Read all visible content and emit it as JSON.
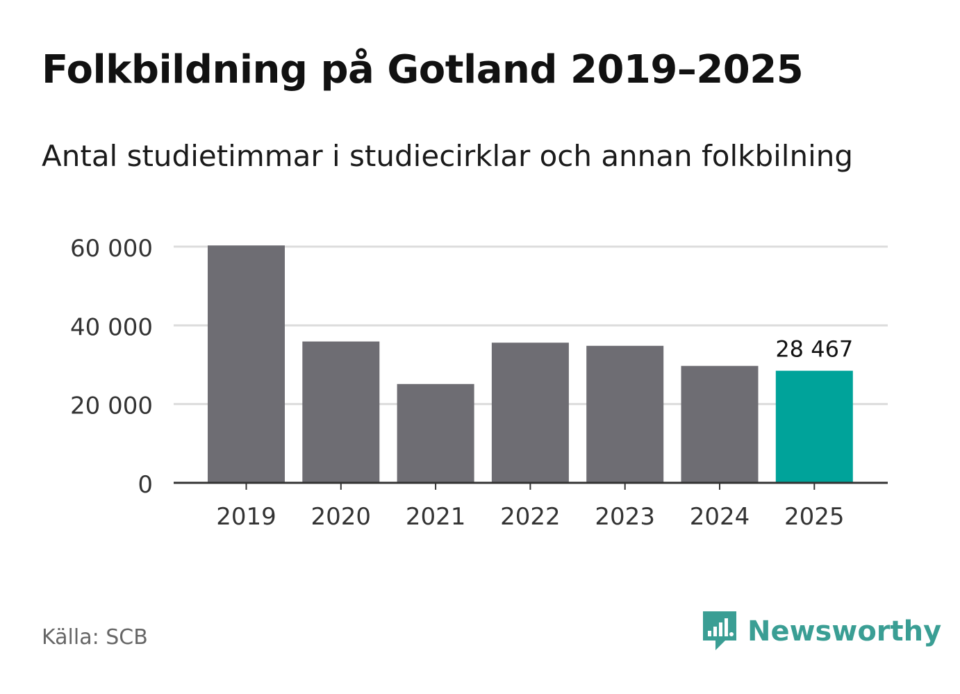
{
  "title": "Folkbildning på Gotland 2019–2025",
  "subtitle": "Antal studietimmar i studiecirklar och annan folkbilning",
  "source": "Källa: SCB",
  "brand": {
    "name": "Newsworthy",
    "color": "#3a9e94",
    "icon": "newsworthy-logo-icon"
  },
  "colors": {
    "bar": "#6e6d73",
    "highlight": "#00a39a",
    "grid": "#dcdcdc",
    "axis": "#333333"
  },
  "chart_data": {
    "type": "bar",
    "title": "Folkbildning på Gotland 2019–2025",
    "subtitle": "Antal studietimmar i studiecirklar och annan folkbilning",
    "xlabel": "",
    "ylabel": "",
    "categories": [
      "2019",
      "2020",
      "2021",
      "2022",
      "2023",
      "2024",
      "2025"
    ],
    "values": [
      60300,
      35900,
      25100,
      35600,
      34800,
      29700,
      28467
    ],
    "highlight_index": 6,
    "highlight_label": "28 467",
    "ylim": [
      0,
      60000
    ],
    "yticks": [
      0,
      20000,
      40000,
      60000
    ],
    "ytick_labels": [
      "0",
      "20 000",
      "40 000",
      "60 000"
    ],
    "grid": true,
    "legend": "none"
  }
}
